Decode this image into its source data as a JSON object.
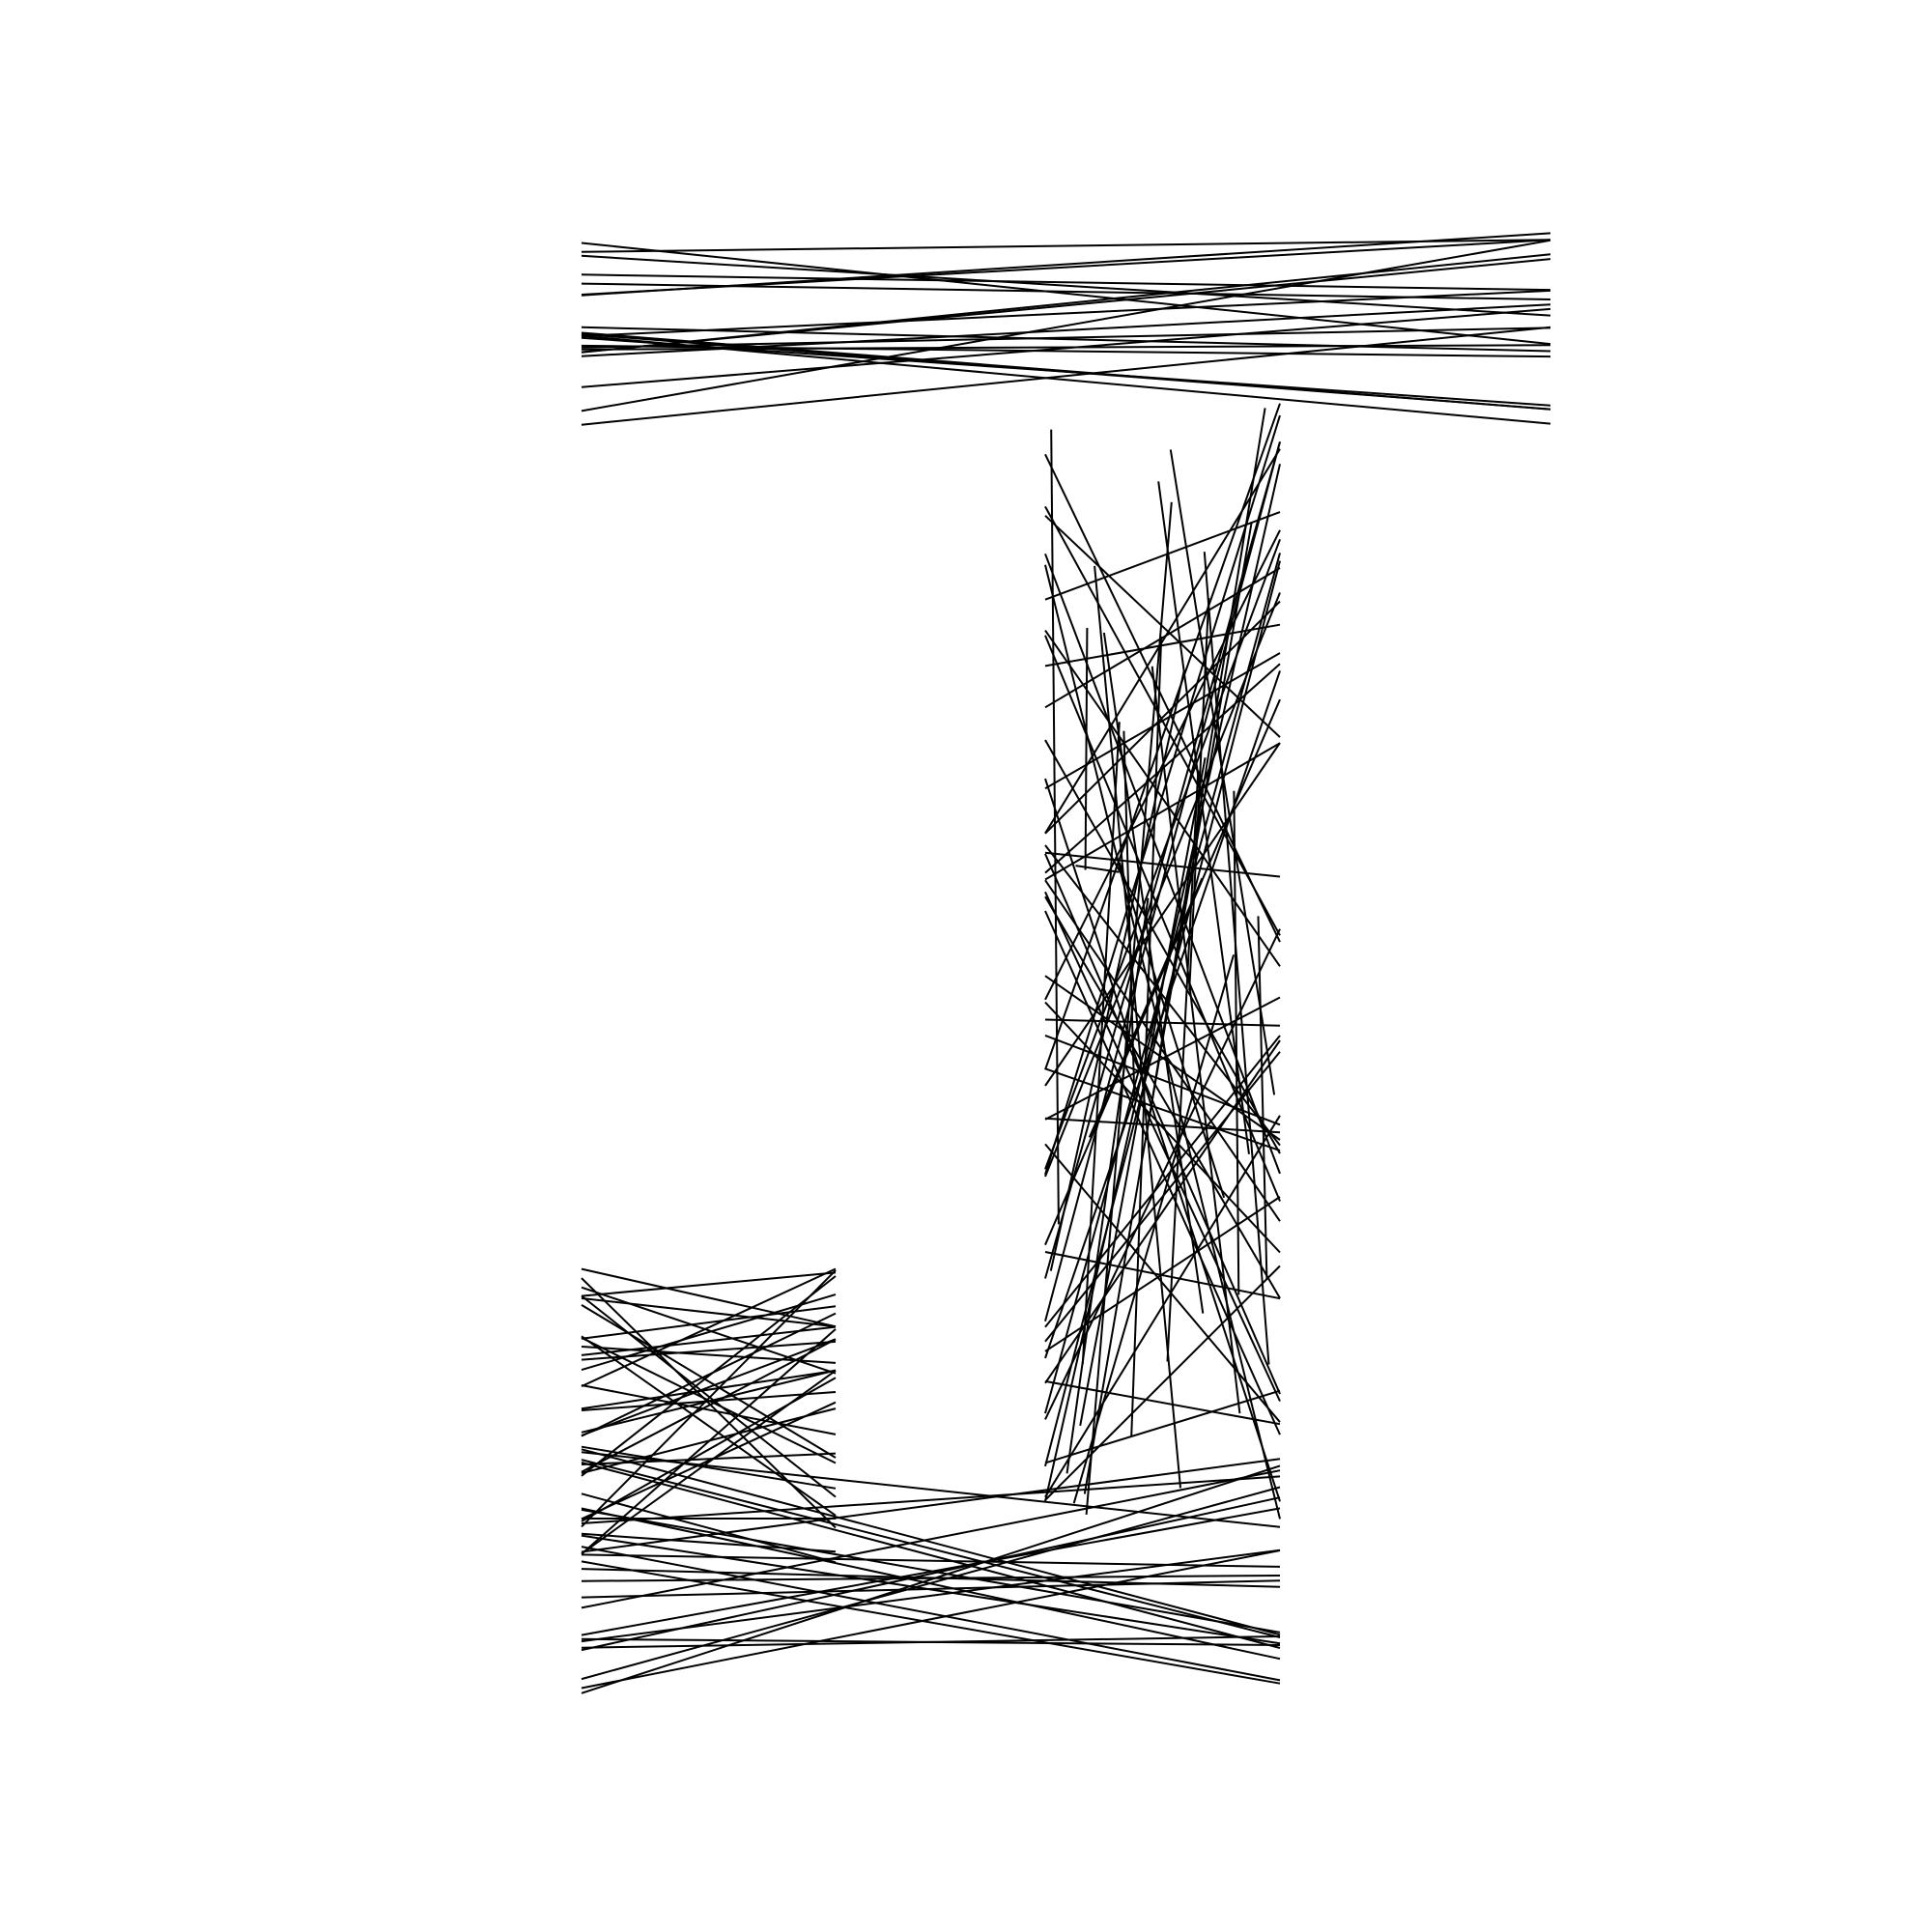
{
  "artwork": {
    "subject": "letter-J",
    "style": "line-hatching",
    "colors": {
      "background": "#ffffff",
      "line": "#000000"
    }
  }
}
